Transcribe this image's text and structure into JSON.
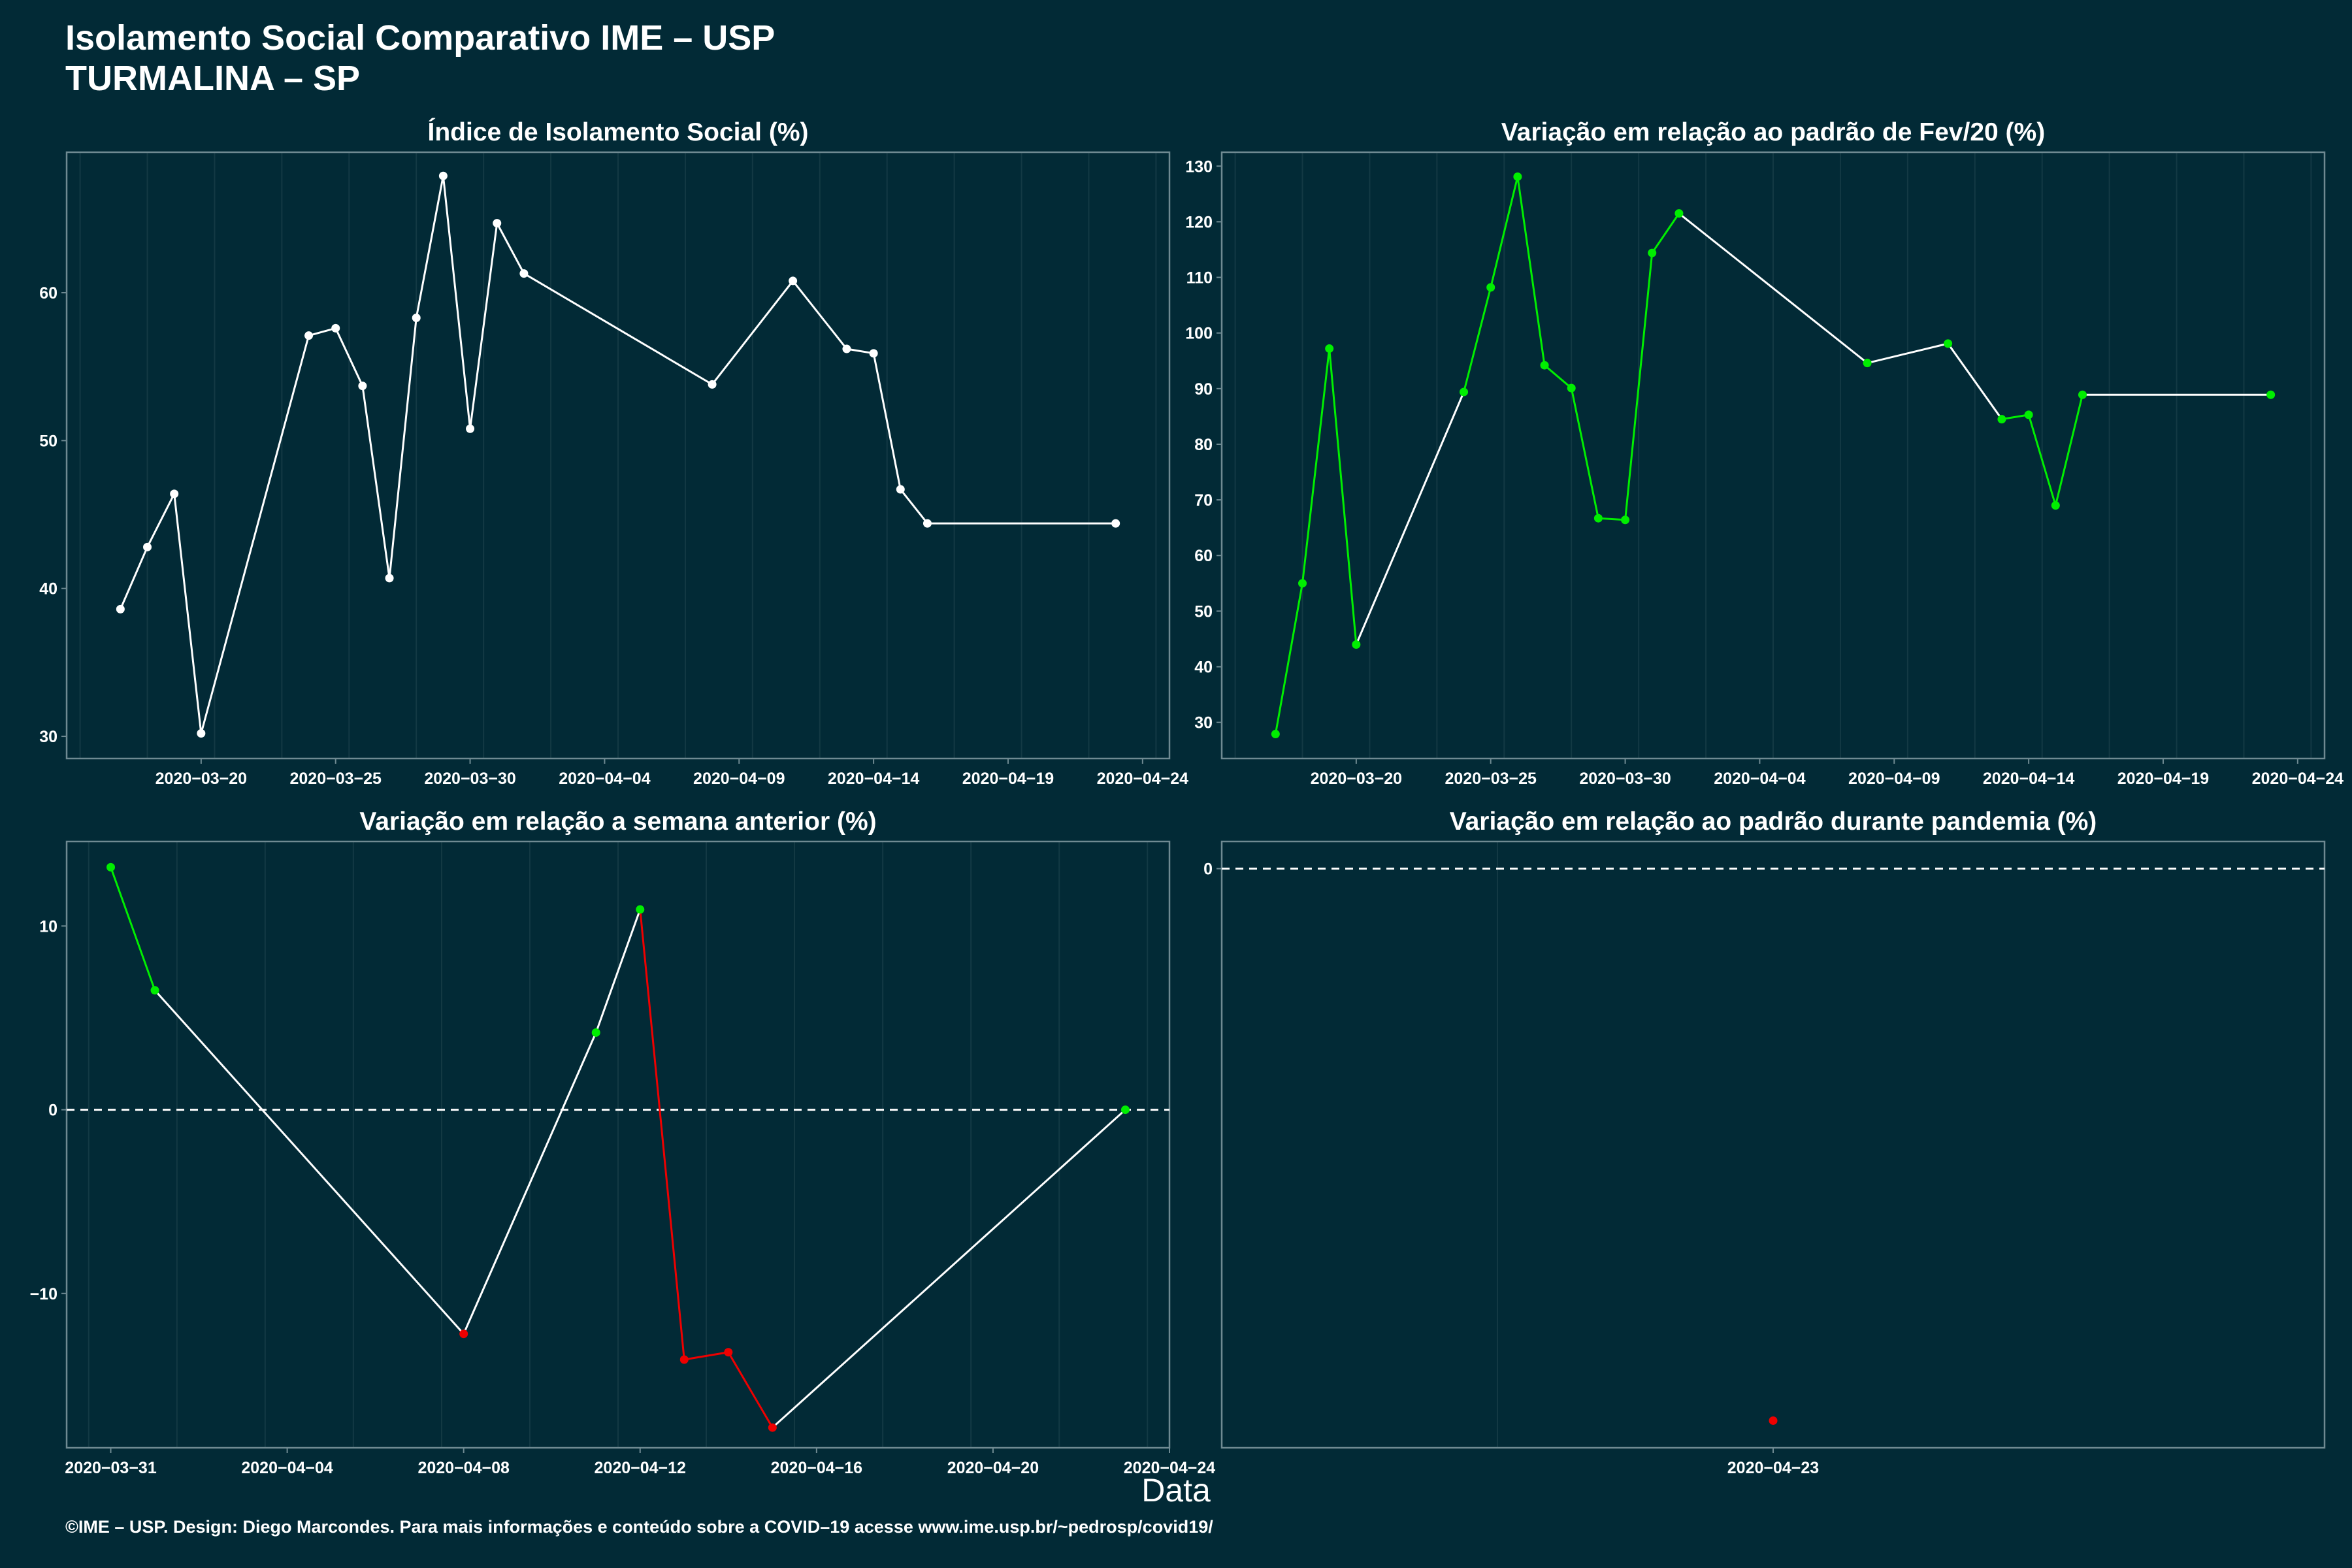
{
  "header": {
    "title": "Isolamento Social Comparativo IME – USP",
    "subtitle": "TURMALINA – SP"
  },
  "xlabel": "Data",
  "footer": "©IME – USP. Design: Diego Marcondes. Para mais informações e conteúdo sobre a COVID–19 acesse www.ime.usp.br/~pedrosp/covid19/",
  "colors": {
    "background": "#022a36",
    "white": "#ffffff",
    "green": "#00ee00",
    "red": "#ee0000"
  },
  "chart_data": [
    {
      "type": "line",
      "title": "Índice de Isolamento Social (%)",
      "xlim": [
        "2020-03-15",
        "2020-04-25"
      ],
      "ylim": [
        28.5,
        69.5
      ],
      "yticks": [
        30,
        40,
        50,
        60
      ],
      "xticks": [
        "2020-03-20",
        "2020-03-25",
        "2020-03-30",
        "2020-04-04",
        "2020-04-09",
        "2020-04-14",
        "2020-04-19",
        "2020-04-24"
      ],
      "points": [
        {
          "x": "2020-03-17",
          "y": 38.6,
          "c": "white"
        },
        {
          "x": "2020-03-18",
          "y": 42.8,
          "c": "white"
        },
        {
          "x": "2020-03-19",
          "y": 46.4,
          "c": "white"
        },
        {
          "x": "2020-03-20",
          "y": 30.2,
          "c": "white"
        },
        {
          "x": "2020-03-24",
          "y": 57.1,
          "c": "white"
        },
        {
          "x": "2020-03-25",
          "y": 57.6,
          "c": "white"
        },
        {
          "x": "2020-03-26",
          "y": 53.7,
          "c": "white"
        },
        {
          "x": "2020-03-27",
          "y": 40.7,
          "c": "white"
        },
        {
          "x": "2020-03-28",
          "y": 58.3,
          "c": "white"
        },
        {
          "x": "2020-03-29",
          "y": 67.9,
          "c": "white"
        },
        {
          "x": "2020-03-30",
          "y": 50.8,
          "c": "white"
        },
        {
          "x": "2020-03-31",
          "y": 64.7,
          "c": "white"
        },
        {
          "x": "2020-04-01",
          "y": 61.3,
          "c": "white"
        },
        {
          "x": "2020-04-08",
          "y": 53.8,
          "c": "white"
        },
        {
          "x": "2020-04-11",
          "y": 60.8,
          "c": "white"
        },
        {
          "x": "2020-04-13",
          "y": 56.2,
          "c": "white"
        },
        {
          "x": "2020-04-14",
          "y": 55.9,
          "c": "white"
        },
        {
          "x": "2020-04-15",
          "y": 46.7,
          "c": "white"
        },
        {
          "x": "2020-04-16",
          "y": 44.4,
          "c": "white"
        },
        {
          "x": "2020-04-23",
          "y": 44.4,
          "c": "white"
        }
      ]
    },
    {
      "type": "line",
      "title": "Variação em relação ao padrão de Fev/20 (%)",
      "xlim": [
        "2020-03-15",
        "2020-04-25"
      ],
      "ylim": [
        23.5,
        132.5
      ],
      "yticks": [
        30,
        40,
        50,
        60,
        70,
        80,
        90,
        100,
        110,
        120,
        130
      ],
      "xticks": [
        "2020-03-20",
        "2020-03-25",
        "2020-03-30",
        "2020-04-04",
        "2020-04-09",
        "2020-04-14",
        "2020-04-19",
        "2020-04-24"
      ],
      "points": [
        {
          "x": "2020-03-17",
          "y": 27.9,
          "c": "green"
        },
        {
          "x": "2020-03-18",
          "y": 55.0,
          "c": "green"
        },
        {
          "x": "2020-03-19",
          "y": 97.2,
          "c": "green"
        },
        {
          "x": "2020-03-20",
          "y": 44.0,
          "c": "green"
        },
        {
          "x": "2020-03-24",
          "y": 89.4,
          "c": "green"
        },
        {
          "x": "2020-03-25",
          "y": 108.2,
          "c": "green"
        },
        {
          "x": "2020-03-26",
          "y": 128.1,
          "c": "green"
        },
        {
          "x": "2020-03-27",
          "y": 94.2,
          "c": "green"
        },
        {
          "x": "2020-03-28",
          "y": 90.1,
          "c": "green"
        },
        {
          "x": "2020-03-29",
          "y": 66.7,
          "c": "green"
        },
        {
          "x": "2020-03-30",
          "y": 66.4,
          "c": "green"
        },
        {
          "x": "2020-03-31",
          "y": 114.4,
          "c": "green"
        },
        {
          "x": "2020-04-01",
          "y": 121.5,
          "c": "green"
        },
        {
          "x": "2020-04-08",
          "y": 94.6,
          "c": "green"
        },
        {
          "x": "2020-04-11",
          "y": 98.1,
          "c": "green"
        },
        {
          "x": "2020-04-13",
          "y": 84.5,
          "c": "green"
        },
        {
          "x": "2020-04-14",
          "y": 85.3,
          "c": "green"
        },
        {
          "x": "2020-04-15",
          "y": 69.0,
          "c": "green"
        },
        {
          "x": "2020-04-16",
          "y": 88.9,
          "c": "green"
        },
        {
          "x": "2020-04-23",
          "y": 88.9,
          "c": "green"
        }
      ],
      "segment_colors": [
        "green",
        "green",
        "green",
        "white",
        "green",
        "green",
        "green",
        "green",
        "green",
        "green",
        "green",
        "green",
        "white",
        "white",
        "white",
        "green",
        "green",
        "green",
        "white"
      ]
    },
    {
      "type": "line",
      "title": "Variação em relação a semana anterior (%)",
      "xlim": [
        "2020-03-30",
        "2020-04-24"
      ],
      "ylim": [
        -18.4,
        14.6
      ],
      "yticks": [
        -10,
        0,
        10
      ],
      "xticks": [
        "2020-03-31",
        "2020-04-04",
        "2020-04-08",
        "2020-04-12",
        "2020-04-16",
        "2020-04-20",
        "2020-04-24"
      ],
      "hline": 0,
      "points": [
        {
          "x": "2020-03-31",
          "y": 13.2,
          "c": "green"
        },
        {
          "x": "2020-04-01",
          "y": 6.5,
          "c": "green"
        },
        {
          "x": "2020-04-08",
          "y": -12.2,
          "c": "red"
        },
        {
          "x": "2020-04-11",
          "y": 4.2,
          "c": "green"
        },
        {
          "x": "2020-04-12",
          "y": 10.9,
          "c": "green"
        },
        {
          "x": "2020-04-13",
          "y": -13.6,
          "c": "red"
        },
        {
          "x": "2020-04-14",
          "y": -13.2,
          "c": "red"
        },
        {
          "x": "2020-04-15",
          "y": -17.3,
          "c": "red"
        },
        {
          "x": "2020-04-23",
          "y": 0.0,
          "c": "green"
        }
      ],
      "segment_colors": [
        "green",
        "white",
        "white",
        "white",
        "red",
        "red",
        "red",
        "white"
      ]
    },
    {
      "type": "scatter",
      "title": "Variação em relação ao padrão durante pandemia (%)",
      "xlim": [
        "2020-04-22",
        "2020-04-24"
      ],
      "ylim": [
        -32,
        1.5
      ],
      "yticks": [
        0
      ],
      "xticks": [
        "2020-04-23"
      ],
      "hline": 0,
      "points": [
        {
          "x": "2020-04-23",
          "y": -30.5,
          "c": "red"
        }
      ]
    }
  ]
}
